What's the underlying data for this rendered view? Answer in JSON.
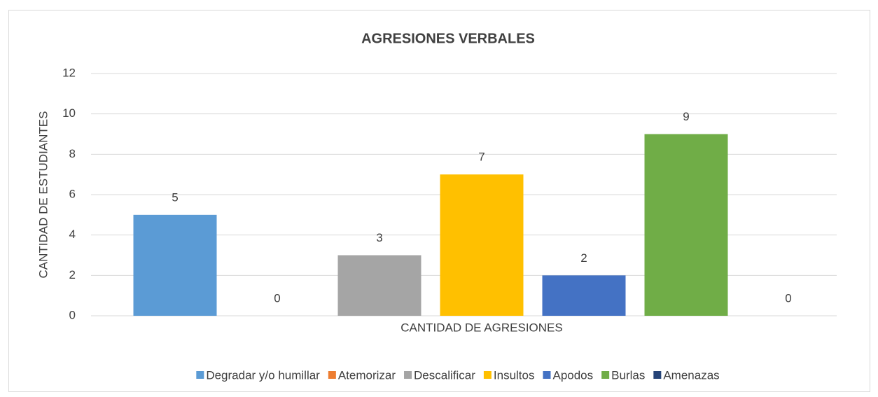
{
  "chart_data": {
    "type": "bar",
    "title": "AGRESIONES VERBALES",
    "y_label": "CANTIDAD DE ESTUDIANTES",
    "categories": [
      "CANTIDAD DE AGRESIONES"
    ],
    "series": [
      {
        "name": "Degradar y/o humillar",
        "color": "#5b9bd5",
        "values": [
          5
        ]
      },
      {
        "name": "Atemorizar",
        "color": "#ed7d31",
        "values": [
          0
        ]
      },
      {
        "name": "Descalificar",
        "color": "#a5a5a5",
        "values": [
          3
        ]
      },
      {
        "name": "Insultos",
        "color": "#ffc000",
        "values": [
          7
        ]
      },
      {
        "name": "Apodos",
        "color": "#4472c4",
        "values": [
          2
        ]
      },
      {
        "name": "Burlas",
        "color": "#70ad47",
        "values": [
          9
        ]
      },
      {
        "name": "Amenazas",
        "color": "#264478",
        "values": [
          0
        ]
      }
    ],
    "ylim": [
      0,
      12
    ],
    "yticks": [
      0,
      2,
      4,
      6,
      8,
      10,
      12
    ],
    "grid": true,
    "legend": "bottom"
  }
}
